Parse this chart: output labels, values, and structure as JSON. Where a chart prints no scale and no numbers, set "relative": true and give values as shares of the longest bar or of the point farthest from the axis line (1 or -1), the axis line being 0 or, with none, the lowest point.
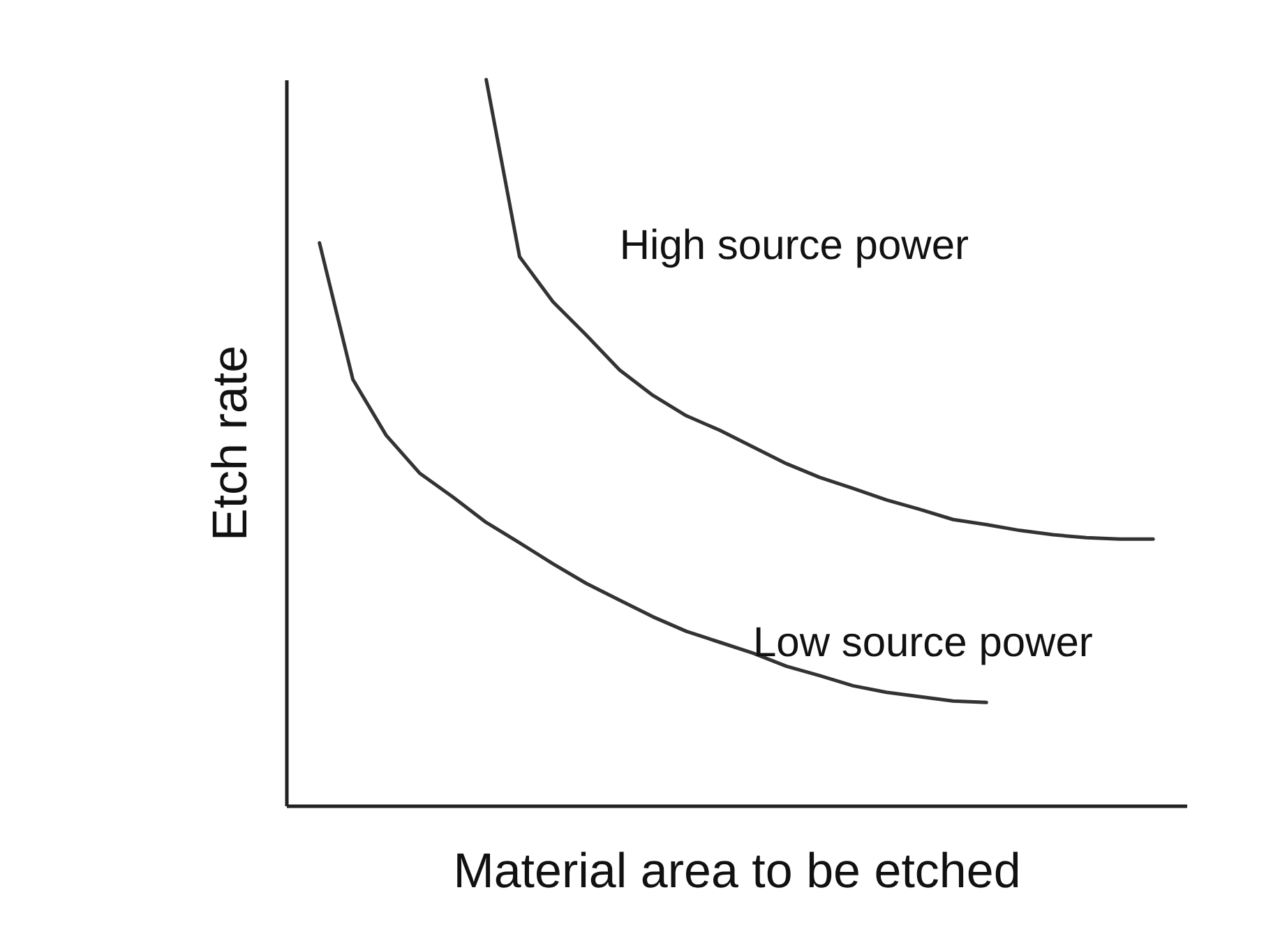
{
  "chart_data": {
    "type": "line",
    "relative": true,
    "xlabel": "Material area to be etched",
    "ylabel": "Etch rate",
    "legend": false,
    "grid": false,
    "marker": "none",
    "line_style": "solid",
    "categories": [
      null,
      null,
      null,
      null,
      null,
      null,
      null,
      null,
      null,
      null,
      null,
      null,
      null,
      null,
      null,
      null,
      null,
      null,
      null,
      null,
      null,
      null,
      null,
      null,
      null,
      null,
      null,
      null
    ],
    "series": [
      {
        "name": "High source power",
        "color": "#333333",
        "values": [
          null,
          null,
          null,
          null,
          null,
          null,
          1,
          0.756,
          0.694,
          0.648,
          0.6,
          0.565,
          0.537,
          0.517,
          0.494,
          0.471,
          0.452,
          0.437,
          0.421,
          0.408,
          0.394,
          0.387,
          0.379,
          0.373,
          0.369,
          0.367,
          0.367,
          null
        ]
      },
      {
        "name": "Low source power",
        "color": "#333333",
        "values": [
          null,
          0.775,
          0.587,
          0.51,
          0.458,
          0.425,
          0.39,
          0.362,
          0.333,
          0.306,
          0.283,
          0.26,
          0.24,
          0.225,
          0.21,
          0.192,
          0.179,
          0.165,
          0.156,
          0.15,
          0.144,
          0.142,
          null,
          null,
          null,
          null,
          null,
          null
        ]
      }
    ]
  }
}
